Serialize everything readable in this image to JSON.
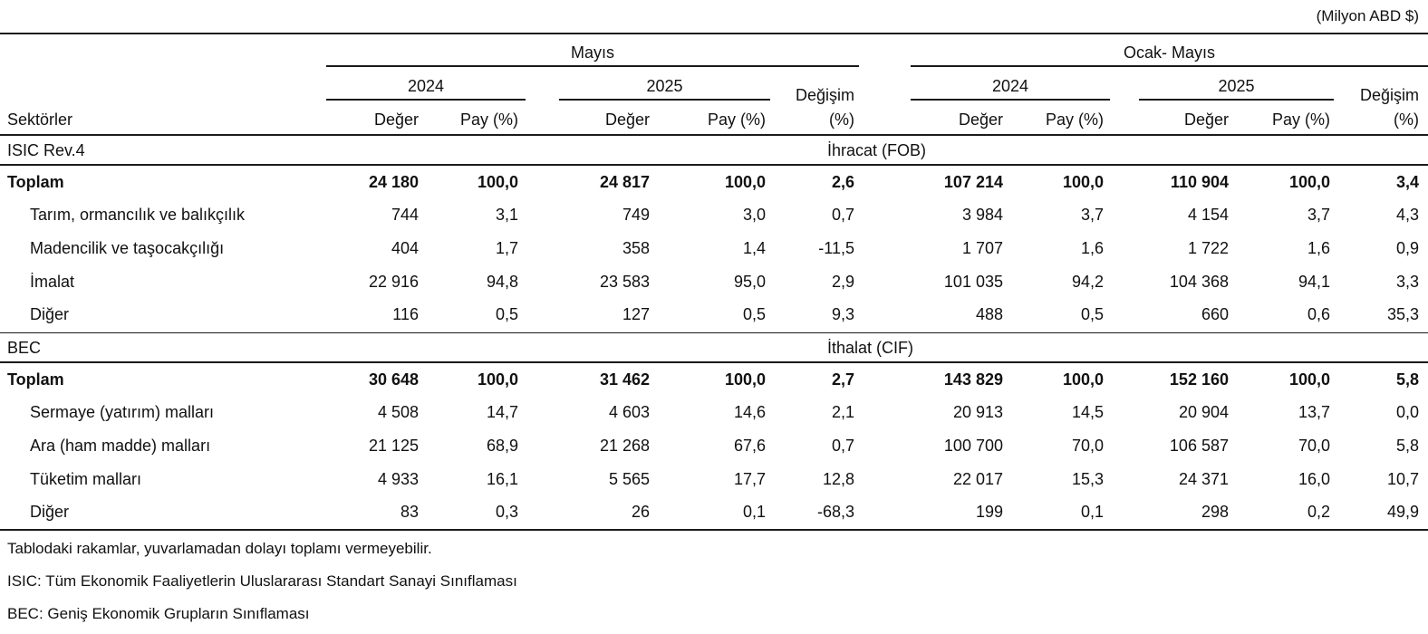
{
  "unit": "(Milyon ABD $)",
  "header": {
    "period_left": "Mayıs",
    "period_right": "Ocak- Mayıs",
    "year_a": "2024",
    "year_b": "2025",
    "change_top": "Değişim",
    "change_bottom": "(%)",
    "sector": "Sektörler",
    "value": "Değer",
    "share": "Pay (%)"
  },
  "sections": [
    {
      "code": "ISIC  Rev.4",
      "title": "İhracat (FOB)",
      "rows": [
        {
          "label": "Toplam",
          "bold": true,
          "cells": [
            "24 180",
            "100,0",
            "24 817",
            "100,0",
            "2,6",
            "107 214",
            "100,0",
            "110 904",
            "100,0",
            "3,4"
          ]
        },
        {
          "label": "Tarım, ormancılık ve balıkçılık",
          "bold": false,
          "cells": [
            "744",
            "3,1",
            "749",
            "3,0",
            "0,7",
            "3 984",
            "3,7",
            "4 154",
            "3,7",
            "4,3"
          ]
        },
        {
          "label": "Madencilik ve taşocakçılığı",
          "bold": false,
          "cells": [
            "404",
            "1,7",
            "358",
            "1,4",
            "-11,5",
            "1 707",
            "1,6",
            "1 722",
            "1,6",
            "0,9"
          ]
        },
        {
          "label": "İmalat",
          "bold": false,
          "cells": [
            "22 916",
            "94,8",
            "23 583",
            "95,0",
            "2,9",
            "101 035",
            "94,2",
            "104 368",
            "94,1",
            "3,3"
          ]
        },
        {
          "label": "Diğer",
          "bold": false,
          "cells": [
            "116",
            "0,5",
            "127",
            "0,5",
            "9,3",
            "488",
            "0,5",
            "660",
            "0,6",
            "35,3"
          ]
        }
      ]
    },
    {
      "code": "BEC",
      "title": "İthalat (CIF)",
      "rows": [
        {
          "label": "Toplam",
          "bold": true,
          "cells": [
            "30 648",
            "100,0",
            "31 462",
            "100,0",
            "2,7",
            "143 829",
            "100,0",
            "152 160",
            "100,0",
            "5,8"
          ]
        },
        {
          "label": "Sermaye (yatırım) malları",
          "bold": false,
          "cells": [
            "4 508",
            "14,7",
            "4 603",
            "14,6",
            "2,1",
            "20 913",
            "14,5",
            "20 904",
            "13,7",
            "0,0"
          ]
        },
        {
          "label": "Ara (ham madde) malları",
          "bold": false,
          "cells": [
            "21 125",
            "68,9",
            "21 268",
            "67,6",
            "0,7",
            "100 700",
            "70,0",
            "106 587",
            "70,0",
            "5,8"
          ]
        },
        {
          "label": "Tüketim malları",
          "bold": false,
          "cells": [
            "4 933",
            "16,1",
            "5 565",
            "17,7",
            "12,8",
            "22 017",
            "15,3",
            "24 371",
            "16,0",
            "10,7"
          ]
        },
        {
          "label": "Diğer",
          "bold": false,
          "cells": [
            "83",
            "0,3",
            "26",
            "0,1",
            "-68,3",
            "199",
            "0,1",
            "298",
            "0,2",
            "49,9"
          ]
        }
      ]
    }
  ],
  "footnotes": [
    "Tablodaki rakamlar, yuvarlamadan dolayı toplamı vermeyebilir.",
    "ISIC: Tüm Ekonomik Faaliyetlerin Uluslararası Standart Sanayi Sınıflaması",
    "BEC: Geniş Ekonomik Grupların Sınıflaması"
  ]
}
